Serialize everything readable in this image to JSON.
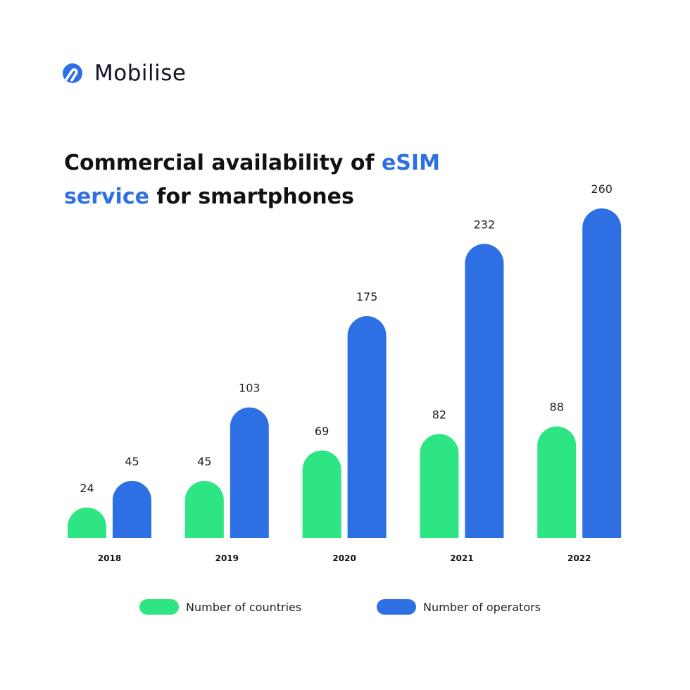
{
  "brand": {
    "name": "Mobilise",
    "color": "#2f6fe4"
  },
  "title": {
    "part1": "Commercial availability of ",
    "highlight1": "eSIM",
    "highlight2": "service",
    "part2": " for smartphones"
  },
  "chart_data": {
    "type": "bar",
    "categories": [
      "2018",
      "2019",
      "2020",
      "2021",
      "2022"
    ],
    "series": [
      {
        "name": "Number of countries",
        "color": "#2ee584",
        "values": [
          24,
          45,
          69,
          82,
          88
        ]
      },
      {
        "name": "Number of operators",
        "color": "#2f6fe4",
        "values": [
          45,
          103,
          175,
          232,
          260
        ]
      }
    ],
    "ylim": [
      0,
      260
    ],
    "grid": false,
    "legend": "bottom"
  }
}
